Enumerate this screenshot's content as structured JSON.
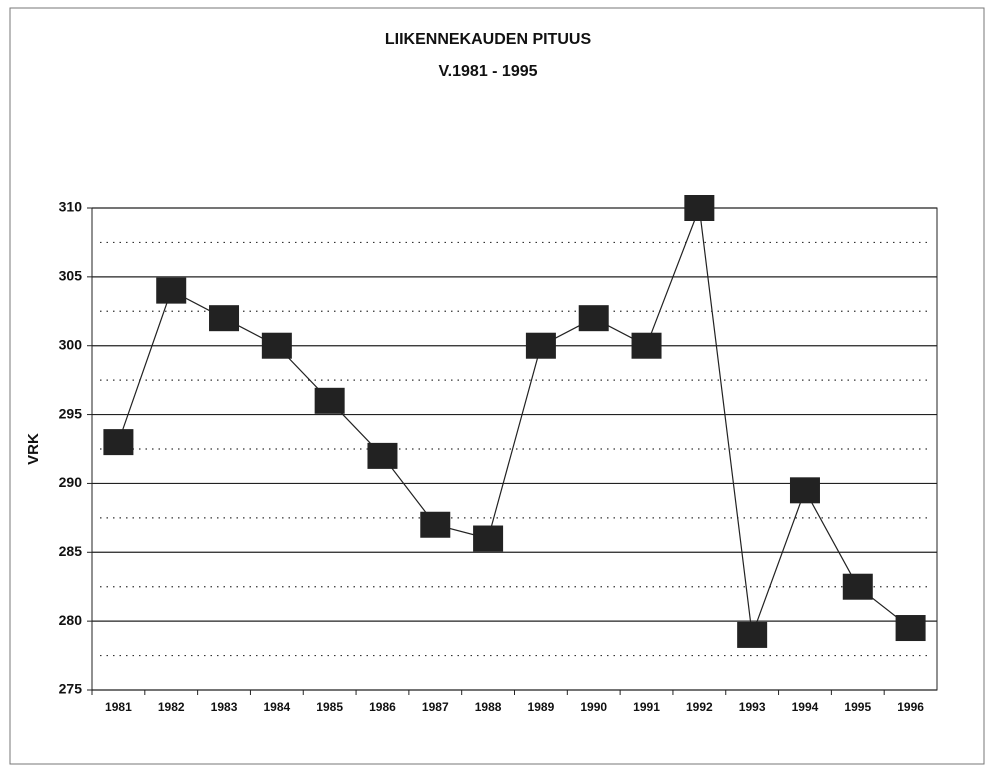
{
  "chart_data": {
    "type": "line",
    "title": "LIIKENNEKAUDEN PITUUS",
    "subtitle": "V.1981 - 1995",
    "y_label": "VRK",
    "categories": [
      "1981",
      "1982",
      "1983",
      "1984",
      "1985",
      "1986",
      "1987",
      "1988",
      "1989",
      "1990",
      "1991",
      "1992",
      "1993",
      "1994",
      "1995",
      "1996"
    ],
    "series": [
      {
        "color": "#222222",
        "values": [
          293,
          304,
          302,
          300,
          296,
          292,
          287,
          286,
          300,
          302,
          300,
          310,
          279,
          289.5,
          282.5,
          279.5
        ]
      }
    ],
    "ylim": [
      275,
      310
    ],
    "yticks": [
      275,
      280,
      285,
      290,
      295,
      300,
      305,
      310
    ],
    "yminorticks": [
      277.5,
      282.5,
      287.5,
      292.5,
      297.5,
      302.5,
      307.5
    ],
    "grid": true
  }
}
